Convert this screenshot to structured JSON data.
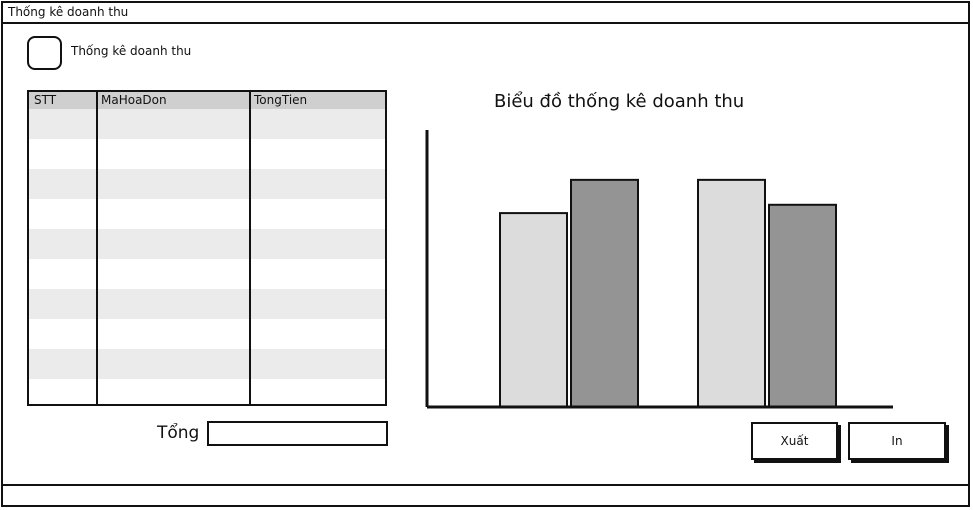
{
  "window": {
    "title": "Thống kê doanh thu"
  },
  "checkbox": {
    "label": "Thống kê doanh thu",
    "checked": false
  },
  "table": {
    "columns": [
      "STT",
      "MaHoaDon",
      "TongTien"
    ],
    "rows": [
      [
        "",
        "",
        ""
      ],
      [
        "",
        "",
        ""
      ],
      [
        "",
        "",
        ""
      ],
      [
        "",
        "",
        ""
      ],
      [
        "",
        "",
        ""
      ],
      [
        "",
        "",
        ""
      ],
      [
        "",
        "",
        ""
      ],
      [
        "",
        "",
        ""
      ],
      [
        "",
        "",
        ""
      ],
      [
        "",
        "",
        ""
      ]
    ]
  },
  "total": {
    "label": "Tổng",
    "value": ""
  },
  "chart": {
    "title": "Biểu đồ thống kê doanh thu"
  },
  "chart_data": {
    "type": "bar",
    "title": "Biểu đồ thống kê doanh thu",
    "categories": [
      "",
      ""
    ],
    "series": [
      {
        "values": [
          70,
          82
        ],
        "color": "#dcdcdc"
      },
      {
        "values": [
          82,
          73
        ],
        "color": "#949494"
      }
    ],
    "ylim": [
      0,
      100
    ],
    "xlabel": "",
    "ylabel": "",
    "grid": false
  },
  "buttons": {
    "export_label": "Xuất",
    "print_label": "In"
  }
}
